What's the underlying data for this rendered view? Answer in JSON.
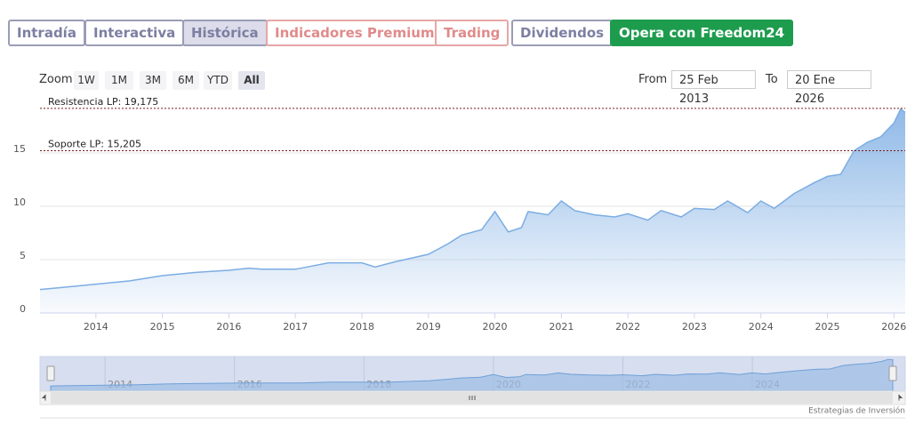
{
  "tabs": [
    "Intradía",
    "Interactiva",
    "Histórica",
    "Indicadores Premium",
    "Trading",
    "Dividendos",
    "Opera con Freedom24"
  ],
  "zoom": {
    "label": "Zoom",
    "options": [
      "1W",
      "1M",
      "3M",
      "6M",
      "YTD",
      "All"
    ]
  },
  "range": {
    "from_label": "From",
    "from": "25 Feb 2013",
    "to_label": "To",
    "to": "20 Ene 2026"
  },
  "chart_data": {
    "type": "area",
    "color": "#7cade3",
    "x": [
      2013.16,
      2013.5,
      2014.0,
      2014.5,
      2015.0,
      2015.5,
      2016.0,
      2016.3,
      2016.5,
      2017.0,
      2017.5,
      2018.0,
      2018.2,
      2018.5,
      2019.0,
      2019.3,
      2019.5,
      2019.8,
      2020.0,
      2020.2,
      2020.4,
      2020.5,
      2020.8,
      2021.0,
      2021.2,
      2021.5,
      2021.8,
      2022.0,
      2022.3,
      2022.5,
      2022.8,
      2023.0,
      2023.3,
      2023.5,
      2023.8,
      2024.0,
      2024.2,
      2024.5,
      2024.8,
      2025.0,
      2025.2,
      2025.4,
      2025.6,
      2025.8,
      2026.0,
      2026.1,
      2026.17
    ],
    "values": [
      2.2,
      2.4,
      2.7,
      3.0,
      3.5,
      3.8,
      4.0,
      4.2,
      4.1,
      4.1,
      4.7,
      4.7,
      4.3,
      4.8,
      5.5,
      6.5,
      7.3,
      7.8,
      9.5,
      7.6,
      8.0,
      9.5,
      9.2,
      10.5,
      9.6,
      9.2,
      9.0,
      9.3,
      8.7,
      9.6,
      9.0,
      9.8,
      9.7,
      10.5,
      9.4,
      10.5,
      9.8,
      11.2,
      12.2,
      12.8,
      13.0,
      15.2,
      16.0,
      16.5,
      17.8,
      19.1,
      18.8
    ],
    "xlim": [
      2013.16,
      2026.17
    ],
    "ylim": [
      0,
      19.75
    ],
    "xticks": [
      2014,
      2015,
      2016,
      2017,
      2018,
      2019,
      2020,
      2021,
      2022,
      2023,
      2024,
      2025,
      2026
    ],
    "yticks": [
      0,
      5,
      10,
      15
    ],
    "grid": true,
    "annotations": [
      {
        "label": "Resistencia LP: 19,175",
        "value": 19.175
      },
      {
        "label": "Soporte LP: 15,205",
        "value": 15.205
      }
    ],
    "navigator_xticks": [
      2014,
      2016,
      2018,
      2020,
      2022,
      2024
    ]
  },
  "credit": "Estrategias de Inversión"
}
